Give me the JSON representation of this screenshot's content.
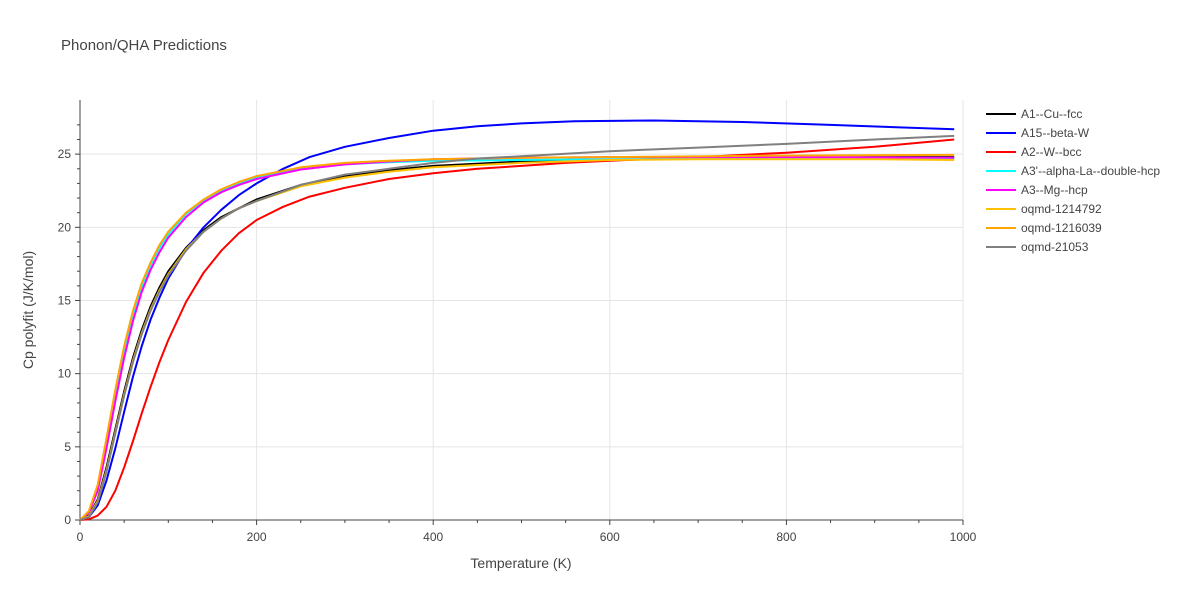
{
  "chart_data": {
    "type": "line",
    "title": "Phonon/QHA Predictions",
    "xlabel": "Temperature (K)",
    "ylabel": "Cp polyfit (J/K/mol)",
    "xlim": [
      0,
      1000
    ],
    "ylim": [
      0,
      28.7
    ],
    "xticks": [
      0,
      200,
      400,
      600,
      800,
      1000
    ],
    "yticks": [
      0,
      5,
      10,
      15,
      20,
      25
    ],
    "xtick_labels": [
      "0",
      "200",
      "400",
      "600",
      "800",
      "1000"
    ],
    "ytick_labels": [
      "0",
      "5",
      "10",
      "15",
      "20",
      "25"
    ],
    "grid": true,
    "legend_position": "right",
    "series": [
      {
        "name": "A1--Cu--fcc",
        "color": "#000000",
        "points": [
          [
            0,
            0
          ],
          [
            10,
            0.3
          ],
          [
            20,
            1.4
          ],
          [
            30,
            3.6
          ],
          [
            40,
            6.2
          ],
          [
            50,
            8.8
          ],
          [
            60,
            11.1
          ],
          [
            70,
            13.0
          ],
          [
            80,
            14.6
          ],
          [
            90,
            15.9
          ],
          [
            100,
            17.0
          ],
          [
            120,
            18.6
          ],
          [
            140,
            19.8
          ],
          [
            160,
            20.7
          ],
          [
            180,
            21.3
          ],
          [
            200,
            21.9
          ],
          [
            250,
            22.9
          ],
          [
            300,
            23.5
          ],
          [
            350,
            23.9
          ],
          [
            400,
            24.2
          ],
          [
            500,
            24.5
          ],
          [
            600,
            24.6
          ],
          [
            700,
            24.7
          ],
          [
            800,
            24.75
          ],
          [
            900,
            24.8
          ],
          [
            990,
            24.8
          ]
        ]
      },
      {
        "name": "A15--beta-W",
        "color": "#0000ff",
        "points": [
          [
            0,
            0
          ],
          [
            10,
            0.2
          ],
          [
            20,
            1.0
          ],
          [
            30,
            2.7
          ],
          [
            40,
            4.9
          ],
          [
            50,
            7.4
          ],
          [
            60,
            9.8
          ],
          [
            70,
            11.9
          ],
          [
            80,
            13.7
          ],
          [
            90,
            15.2
          ],
          [
            100,
            16.5
          ],
          [
            120,
            18.5
          ],
          [
            140,
            20.0
          ],
          [
            160,
            21.2
          ],
          [
            180,
            22.2
          ],
          [
            200,
            23.0
          ],
          [
            230,
            24.0
          ],
          [
            260,
            24.8
          ],
          [
            300,
            25.5
          ],
          [
            350,
            26.1
          ],
          [
            400,
            26.6
          ],
          [
            450,
            26.9
          ],
          [
            500,
            27.1
          ],
          [
            560,
            27.25
          ],
          [
            650,
            27.3
          ],
          [
            750,
            27.2
          ],
          [
            850,
            27.0
          ],
          [
            990,
            26.7
          ]
        ]
      },
      {
        "name": "A2--W--bcc",
        "color": "#ff0000",
        "points": [
          [
            0,
            0
          ],
          [
            10,
            0.05
          ],
          [
            20,
            0.3
          ],
          [
            30,
            0.9
          ],
          [
            40,
            2.0
          ],
          [
            50,
            3.6
          ],
          [
            60,
            5.4
          ],
          [
            70,
            7.3
          ],
          [
            80,
            9.1
          ],
          [
            90,
            10.8
          ],
          [
            100,
            12.3
          ],
          [
            120,
            14.9
          ],
          [
            140,
            16.9
          ],
          [
            160,
            18.4
          ],
          [
            180,
            19.6
          ],
          [
            200,
            20.5
          ],
          [
            230,
            21.4
          ],
          [
            260,
            22.1
          ],
          [
            300,
            22.7
          ],
          [
            350,
            23.3
          ],
          [
            400,
            23.7
          ],
          [
            450,
            24.0
          ],
          [
            500,
            24.2
          ],
          [
            550,
            24.4
          ],
          [
            600,
            24.55
          ],
          [
            700,
            24.8
          ],
          [
            800,
            25.1
          ],
          [
            900,
            25.5
          ],
          [
            990,
            26.0
          ]
        ]
      },
      {
        "name": "A3'--alpha-La--double-hcp",
        "color": "#00ffff",
        "points": [
          [
            0,
            0
          ],
          [
            10,
            0.5
          ],
          [
            20,
            2.2
          ],
          [
            30,
            5.3
          ],
          [
            40,
            8.6
          ],
          [
            50,
            11.6
          ],
          [
            60,
            14.0
          ],
          [
            70,
            15.9
          ],
          [
            80,
            17.4
          ],
          [
            90,
            18.6
          ],
          [
            100,
            19.5
          ],
          [
            120,
            20.9
          ],
          [
            140,
            21.8
          ],
          [
            160,
            22.5
          ],
          [
            180,
            23.0
          ],
          [
            200,
            23.4
          ],
          [
            250,
            24.0
          ],
          [
            300,
            24.3
          ],
          [
            350,
            24.45
          ],
          [
            400,
            24.55
          ],
          [
            500,
            24.6
          ],
          [
            600,
            24.65
          ],
          [
            800,
            24.7
          ],
          [
            990,
            24.7
          ]
        ]
      },
      {
        "name": "A3--Mg--hcp",
        "color": "#ff00ff",
        "points": [
          [
            0,
            0
          ],
          [
            10,
            0.5
          ],
          [
            20,
            2.0
          ],
          [
            30,
            4.9
          ],
          [
            40,
            8.1
          ],
          [
            50,
            11.1
          ],
          [
            60,
            13.6
          ],
          [
            70,
            15.6
          ],
          [
            80,
            17.1
          ],
          [
            90,
            18.3
          ],
          [
            100,
            19.3
          ],
          [
            120,
            20.7
          ],
          [
            140,
            21.7
          ],
          [
            160,
            22.4
          ],
          [
            180,
            22.9
          ],
          [
            200,
            23.3
          ],
          [
            250,
            23.95
          ],
          [
            300,
            24.3
          ],
          [
            350,
            24.5
          ],
          [
            400,
            24.65
          ],
          [
            500,
            24.75
          ],
          [
            600,
            24.8
          ],
          [
            800,
            24.8
          ],
          [
            990,
            24.75
          ]
        ]
      },
      {
        "name": "oqmd-1214792",
        "color": "#ffc000",
        "points": [
          [
            0,
            0
          ],
          [
            10,
            0.25
          ],
          [
            20,
            1.3
          ],
          [
            30,
            3.4
          ],
          [
            40,
            6.0
          ],
          [
            50,
            8.6
          ],
          [
            60,
            10.9
          ],
          [
            70,
            12.8
          ],
          [
            80,
            14.4
          ],
          [
            90,
            15.7
          ],
          [
            100,
            16.8
          ],
          [
            120,
            18.5
          ],
          [
            140,
            19.7
          ],
          [
            160,
            20.6
          ],
          [
            180,
            21.3
          ],
          [
            200,
            21.8
          ],
          [
            250,
            22.8
          ],
          [
            300,
            23.4
          ],
          [
            350,
            23.8
          ],
          [
            400,
            24.1
          ],
          [
            500,
            24.4
          ],
          [
            600,
            24.6
          ],
          [
            700,
            24.65
          ],
          [
            800,
            24.65
          ],
          [
            900,
            24.65
          ],
          [
            990,
            24.6
          ]
        ]
      },
      {
        "name": "oqmd-1216039",
        "color": "#ffa500",
        "points": [
          [
            0,
            0
          ],
          [
            10,
            0.6
          ],
          [
            20,
            2.4
          ],
          [
            30,
            5.6
          ],
          [
            40,
            8.9
          ],
          [
            50,
            11.9
          ],
          [
            60,
            14.3
          ],
          [
            70,
            16.2
          ],
          [
            80,
            17.6
          ],
          [
            90,
            18.8
          ],
          [
            100,
            19.7
          ],
          [
            120,
            21.0
          ],
          [
            140,
            21.9
          ],
          [
            160,
            22.6
          ],
          [
            180,
            23.1
          ],
          [
            200,
            23.5
          ],
          [
            250,
            24.1
          ],
          [
            300,
            24.4
          ],
          [
            350,
            24.55
          ],
          [
            400,
            24.65
          ],
          [
            500,
            24.75
          ],
          [
            600,
            24.8
          ],
          [
            800,
            24.9
          ],
          [
            990,
            24.95
          ]
        ]
      },
      {
        "name": "oqmd-21053",
        "color": "#808080",
        "points": [
          [
            0,
            0
          ],
          [
            10,
            0.2
          ],
          [
            20,
            1.2
          ],
          [
            30,
            3.3
          ],
          [
            40,
            5.9
          ],
          [
            50,
            8.5
          ],
          [
            60,
            10.8
          ],
          [
            70,
            12.7
          ],
          [
            80,
            14.3
          ],
          [
            90,
            15.6
          ],
          [
            100,
            16.7
          ],
          [
            120,
            18.4
          ],
          [
            140,
            19.7
          ],
          [
            160,
            20.6
          ],
          [
            180,
            21.3
          ],
          [
            200,
            21.8
          ],
          [
            250,
            22.9
          ],
          [
            300,
            23.6
          ],
          [
            350,
            24.0
          ],
          [
            400,
            24.4
          ],
          [
            450,
            24.7
          ],
          [
            500,
            24.85
          ],
          [
            600,
            25.2
          ],
          [
            700,
            25.45
          ],
          [
            800,
            25.7
          ],
          [
            900,
            26.0
          ],
          [
            990,
            26.25
          ]
        ]
      }
    ]
  }
}
